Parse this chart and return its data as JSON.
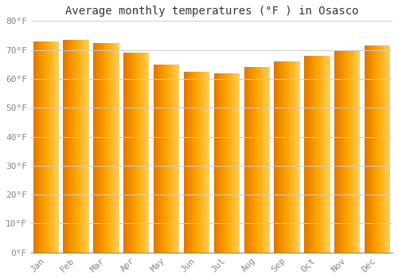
{
  "title": "Average monthly temperatures (°F ) in Osasco",
  "categories": [
    "Jan",
    "Feb",
    "Mar",
    "Apr",
    "May",
    "Jun",
    "Jul",
    "Aug",
    "Sep",
    "Oct",
    "Nov",
    "Dec"
  ],
  "values": [
    73,
    73.5,
    72.5,
    69,
    65,
    62.5,
    62,
    64,
    66,
    68,
    70,
    71.5
  ],
  "bar_color_left": "#E07800",
  "bar_color_mid": "#FFA500",
  "bar_color_right": "#FFD060",
  "background_color": "#FFFFFF",
  "plot_bg_color": "#FFFFFF",
  "grid_color": "#CCCCCC",
  "text_color": "#888888",
  "title_color": "#333333",
  "ylim": [
    0,
    80
  ],
  "yticks": [
    0,
    10,
    20,
    30,
    40,
    50,
    60,
    70,
    80
  ],
  "ytick_labels": [
    "0°F",
    "10°F",
    "20°F",
    "30°F",
    "40°F",
    "50°F",
    "60°F",
    "70°F",
    "80°F"
  ],
  "title_fontsize": 10,
  "tick_fontsize": 8,
  "bar_width": 0.85
}
